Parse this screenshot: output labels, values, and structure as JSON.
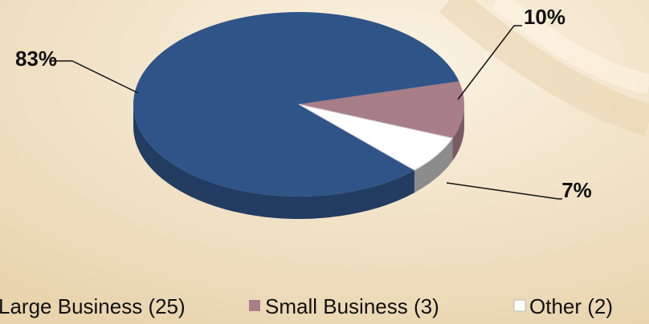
{
  "chart_data": {
    "type": "pie",
    "style": "3d",
    "slices": [
      {
        "label": "Large Business (25)",
        "value": 25,
        "percent_label": "83%",
        "color": "#2f5488"
      },
      {
        "label": "Small Business (3)",
        "value": 3,
        "percent_label": "10%",
        "color": "#a87e88"
      },
      {
        "label": "Other (2)",
        "value": 2,
        "percent_label": "7%",
        "color": "#ffffff"
      }
    ],
    "legend_position": "bottom",
    "background_color": "#f1e3c6"
  }
}
